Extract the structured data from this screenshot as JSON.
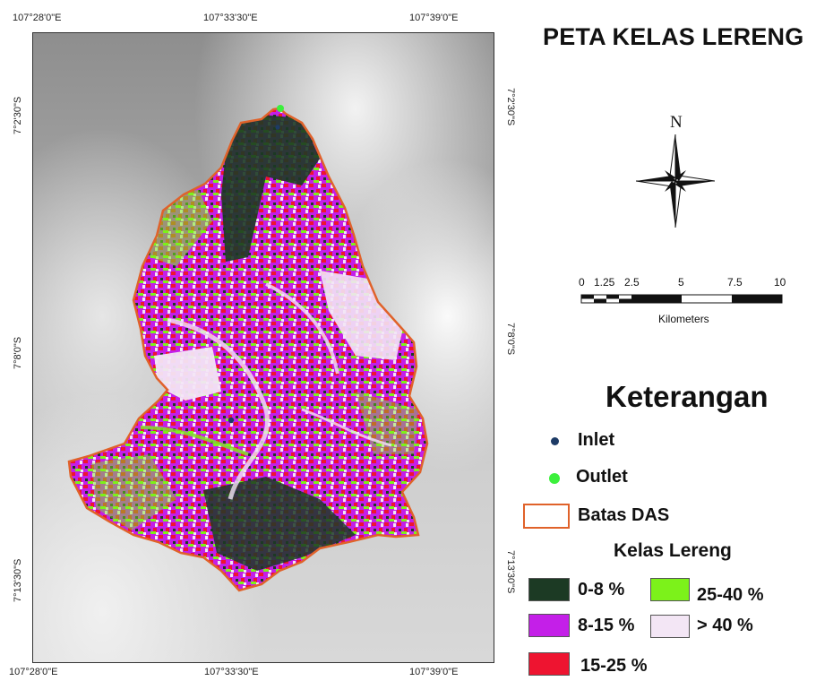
{
  "title": "PETA KELAS LERENG",
  "north_label": "N",
  "coords": {
    "top": [
      "107°28'0\"E",
      "107°33'30\"E",
      "107°39'0\"E"
    ],
    "bottom": [
      "107°28'0\"E",
      "107°33'30\"E",
      "107°39'0\"E"
    ],
    "left": [
      "7°2'30\"S",
      "7°8'0\"S",
      "7°13'30\"S"
    ],
    "right": [
      "7°2'30\"S",
      "7°8'0\"S",
      "7°13'30\"S"
    ]
  },
  "scale": {
    "ticks": [
      "0",
      "1.25",
      "2.5",
      "5",
      "7.5",
      "10"
    ],
    "unit": "Kilometers"
  },
  "legend": {
    "heading": "Keterangan",
    "inlet": "Inlet",
    "outlet": "Outlet",
    "boundary": "Batas DAS",
    "slope_heading": "Kelas Lereng",
    "classes": [
      {
        "label": "0-8 %",
        "color": "#1c3a24"
      },
      {
        "label": "8-15 %",
        "color": "#c41fe8"
      },
      {
        "label": "15-25 %",
        "color": "#ee1430"
      },
      {
        "label": "25-40 %",
        "color": "#7cf21a"
      },
      {
        "label": "> 40 %",
        "color": "#f3e6f5"
      }
    ]
  },
  "colors": {
    "boundary": "#e0622a",
    "inlet": "#1d3b66",
    "outlet": "#3cf03c"
  }
}
